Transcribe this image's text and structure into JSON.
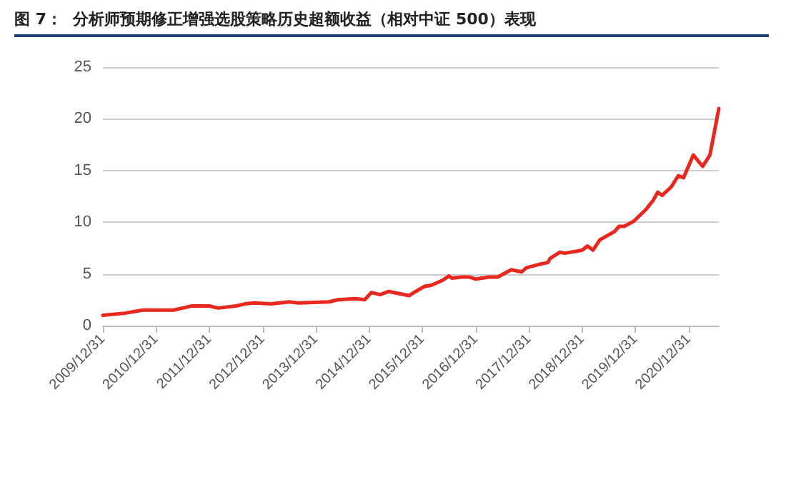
{
  "chart_data": {
    "type": "line",
    "title": "图 7：  分析师预期修正增强选股策略历史超额收益（相对中证 500）表现",
    "x": [
      "2009-12-31",
      "2010-05-31",
      "2010-09-30",
      "2011-04-30",
      "2011-08-31",
      "2011-12-31",
      "2012-02-29",
      "2012-06-30",
      "2012-08-31",
      "2012-10-31",
      "2013-02-28",
      "2013-06-30",
      "2013-08-31",
      "2014-03-31",
      "2014-05-31",
      "2014-09-30",
      "2014-11-30",
      "2015-01-15",
      "2015-03-15",
      "2015-05-15",
      "2015-09-30",
      "2015-11-15",
      "2016-01-15",
      "2016-03-01",
      "2016-05-20",
      "2016-06-30",
      "2016-07-20",
      "2016-09-25",
      "2016-11-15",
      "2017-01-01",
      "2017-03-31",
      "2017-05-31",
      "2017-08-31",
      "2017-11-10",
      "2017-12-15",
      "2018-03-05",
      "2018-05-10",
      "2018-05-25",
      "2018-07-31",
      "2018-09-01",
      "2018-11-25",
      "2019-01-01",
      "2019-02-05",
      "2019-03-15",
      "2019-05-01",
      "2019-08-10",
      "2019-09-10",
      "2019-10-15",
      "2019-12-20",
      "2020-03-10",
      "2020-04-30",
      "2020-06-01",
      "2020-07-01",
      "2020-09-01",
      "2020-10-20",
      "2020-11-25",
      "2021-01-31",
      "2021-04-05",
      "2021-05-25",
      "2021-07-25"
    ],
    "series": [
      {
        "color": "#e8281e",
        "values": [
          1.0,
          1.2,
          1.5,
          1.5,
          1.9,
          1.9,
          1.7,
          1.9,
          2.1,
          2.2,
          2.1,
          2.3,
          2.2,
          2.3,
          2.5,
          2.6,
          2.5,
          3.2,
          3.0,
          3.3,
          2.9,
          3.3,
          3.8,
          3.9,
          4.4,
          4.8,
          4.6,
          4.7,
          4.7,
          4.5,
          4.7,
          4.7,
          5.4,
          5.2,
          5.6,
          5.9,
          6.1,
          6.5,
          7.1,
          7.0,
          7.2,
          7.3,
          7.7,
          7.3,
          8.3,
          9.1,
          9.6,
          9.6,
          10.1,
          11.2,
          12.1,
          12.9,
          12.6,
          13.4,
          14.5,
          14.3,
          16.5,
          15.4,
          16.5,
          21.0
        ]
      }
    ],
    "xlim": [
      "2009-12-31",
      "2021-07-25"
    ],
    "xticks": [
      {
        "value": "2009-12-31",
        "label": "2009/12/31"
      },
      {
        "value": "2010-12-31",
        "label": "2010/12/31"
      },
      {
        "value": "2011-12-31",
        "label": "2011/12/31"
      },
      {
        "value": "2012-12-31",
        "label": "2012/12/31"
      },
      {
        "value": "2013-12-31",
        "label": "2013/12/31"
      },
      {
        "value": "2014-12-31",
        "label": "2014/12/31"
      },
      {
        "value": "2015-12-31",
        "label": "2015/12/31"
      },
      {
        "value": "2016-12-31",
        "label": "2016/12/31"
      },
      {
        "value": "2017-12-31",
        "label": "2017/12/31"
      },
      {
        "value": "2018-12-31",
        "label": "2018/12/31"
      },
      {
        "value": "2019-12-31",
        "label": "2019/12/31"
      },
      {
        "value": "2020-12-31",
        "label": "2020/12/31"
      }
    ],
    "ylim": [
      0,
      25
    ],
    "yticks": [
      0,
      5,
      10,
      15,
      20,
      25
    ],
    "grid": "y",
    "marker": "none",
    "line_style": "solid"
  }
}
